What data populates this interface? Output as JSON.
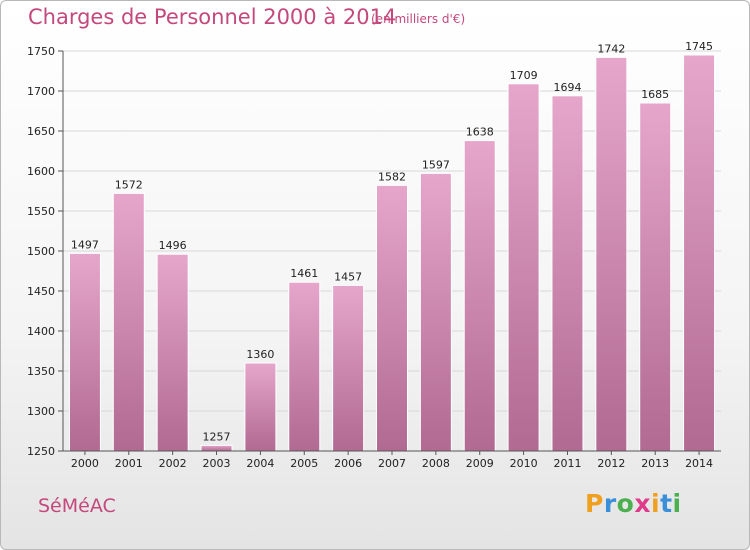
{
  "chart_data": {
    "type": "bar",
    "title": "Charges de Personnel 2000 à 2014",
    "subtitle": "(en milliers d'€)",
    "categories": [
      "2000",
      "2001",
      "2002",
      "2003",
      "2004",
      "2005",
      "2006",
      "2007",
      "2008",
      "2009",
      "2010",
      "2011",
      "2012",
      "2013",
      "2014"
    ],
    "values": [
      1497,
      1572,
      1496,
      1257,
      1360,
      1461,
      1457,
      1582,
      1597,
      1638,
      1709,
      1694,
      1742,
      1685,
      1745
    ],
    "ylim": [
      1250,
      1750
    ],
    "yticks": [
      1250,
      1300,
      1350,
      1400,
      1450,
      1500,
      1550,
      1600,
      1650,
      1700,
      1750
    ],
    "grid": true,
    "bar_color_top": "#e6a6cb",
    "bar_color_bottom": "#b16a92"
  },
  "footer": {
    "commune": "SéMéAC",
    "logo": {
      "letters": [
        "P",
        "r",
        "o",
        "x",
        "i",
        "t",
        "i"
      ],
      "colors": [
        "#f0a020",
        "#3a8fd8",
        "#4caf50",
        "#e03a8a",
        "#f0a020",
        "#3a8fd8",
        "#4caf50"
      ]
    }
  }
}
